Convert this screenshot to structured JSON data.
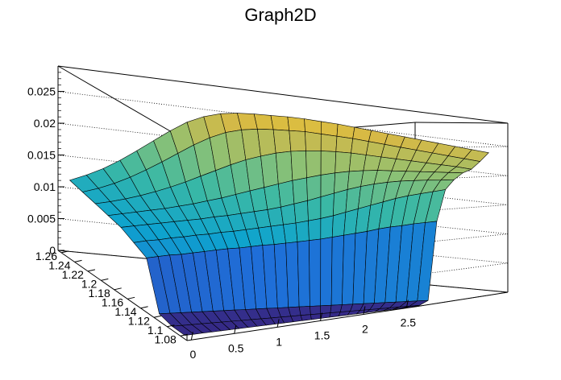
{
  "chart_data": {
    "type": "surface",
    "title": "Graph2D",
    "xlabel": "",
    "ylabel": "",
    "zlabel": "",
    "x_ticks": [
      "0",
      "0.5",
      "1",
      "1.5",
      "2",
      "2.5"
    ],
    "y_ticks": [
      "1.08",
      "1.1",
      "1.12",
      "1.14",
      "1.16",
      "1.18",
      "1.2",
      "1.22",
      "1.24",
      "1.26"
    ],
    "z_ticks": [
      "0",
      "0.005",
      "0.01",
      "0.015",
      "0.02",
      "0.025"
    ],
    "xlim": [
      -0.05,
      2.6
    ],
    "ylim": [
      1.07,
      1.265
    ],
    "zlim": [
      0,
      0.029
    ],
    "grid": true,
    "palette": [
      "#352a87",
      "#1f6ed8",
      "#0ea3ce",
      "#3ab8a5",
      "#8ac176",
      "#d6b946",
      "#f9d71f"
    ],
    "surface_x": [
      0,
      0.1,
      0.2,
      0.3,
      0.4,
      0.5,
      0.6,
      0.7,
      0.8,
      0.9,
      1.0,
      1.1,
      1.2,
      1.3,
      1.4,
      1.5,
      1.6,
      1.7,
      1.8,
      1.9,
      2.0,
      2.1,
      2.2,
      2.3,
      2.4,
      2.5
    ],
    "surface_y": [
      1.08,
      1.1,
      1.12,
      1.14,
      1.16,
      1.18,
      1.2,
      1.22,
      1.24,
      1.26
    ],
    "surface_z": [
      [
        0,
        0,
        0,
        0,
        0,
        0,
        0,
        0,
        0,
        0,
        0,
        0,
        0,
        0,
        0,
        0,
        0,
        0,
        0,
        0,
        0,
        0,
        0,
        0,
        0,
        0
      ],
      [
        0,
        0,
        0,
        0,
        0,
        0,
        0,
        0,
        0,
        0,
        0,
        0,
        0,
        0,
        0,
        0,
        0,
        0,
        0,
        0,
        0,
        0,
        0,
        0,
        0,
        0
      ],
      [
        0.0005,
        0.0005,
        0.0005,
        0.0005,
        0.0005,
        0.0005,
        0.0005,
        0.0005,
        0.0005,
        0.0005,
        0.0005,
        0.0005,
        0.0005,
        0.0005,
        0.0005,
        0.0005,
        0.0005,
        0.0005,
        0.0005,
        0.0005,
        0.0005,
        0.0005,
        0.0005,
        0.0005,
        0.0005,
        0.0005
      ],
      [
        0.0075,
        0.0077,
        0.0079,
        0.008,
        0.0082,
        0.0084,
        0.0086,
        0.0088,
        0.0089,
        0.0091,
        0.0093,
        0.0094,
        0.0096,
        0.0098,
        0.01,
        0.0102,
        0.0105,
        0.0108,
        0.0111,
        0.0114,
        0.0118,
        0.0121,
        0.0123,
        0.0126,
        0.0128,
        0.013
      ],
      [
        0.0085,
        0.0088,
        0.009,
        0.0093,
        0.0095,
        0.0098,
        0.01,
        0.0103,
        0.0105,
        0.0108,
        0.0111,
        0.0114,
        0.0117,
        0.012,
        0.0124,
        0.0128,
        0.0133,
        0.0139,
        0.0145,
        0.0151,
        0.0157,
        0.0163,
        0.0168,
        0.0172,
        0.0176,
        0.018
      ],
      [
        0.0095,
        0.0098,
        0.0101,
        0.0104,
        0.0107,
        0.011,
        0.0113,
        0.0117,
        0.012,
        0.0124,
        0.0128,
        0.0132,
        0.0137,
        0.0143,
        0.0149,
        0.0156,
        0.0163,
        0.017,
        0.0176,
        0.0181,
        0.0185,
        0.0188,
        0.019,
        0.0192,
        0.0193,
        0.0195
      ],
      [
        0.01,
        0.0104,
        0.0108,
        0.0112,
        0.0116,
        0.0121,
        0.0126,
        0.0132,
        0.0138,
        0.0145,
        0.0152,
        0.0159,
        0.0166,
        0.0173,
        0.0179,
        0.0185,
        0.019,
        0.0194,
        0.0197,
        0.0199,
        0.02,
        0.0201,
        0.0202,
        0.0203,
        0.0204,
        0.0205
      ],
      [
        0.0105,
        0.011,
        0.0116,
        0.0123,
        0.0131,
        0.014,
        0.015,
        0.0161,
        0.0172,
        0.0183,
        0.0193,
        0.0201,
        0.0208,
        0.0213,
        0.0216,
        0.0218,
        0.0219,
        0.0219,
        0.0218,
        0.0217,
        0.0216,
        0.0215,
        0.0214,
        0.0213,
        0.0212,
        0.021
      ],
      [
        0.011,
        0.0118,
        0.0128,
        0.014,
        0.0154,
        0.0169,
        0.0185,
        0.0201,
        0.0215,
        0.0226,
        0.0233,
        0.0237,
        0.0239,
        0.024,
        0.0241,
        0.024,
        0.0239,
        0.0238,
        0.0236,
        0.0234,
        0.0232,
        0.023,
        0.0228,
        0.0226,
        0.0224,
        0.0222
      ],
      [
        0.0115,
        0.0126,
        0.0139,
        0.0155,
        0.0173,
        0.0192,
        0.0211,
        0.0228,
        0.024,
        0.0248,
        0.0252,
        0.0254,
        0.0255,
        0.0256,
        0.0256,
        0.0255,
        0.0254,
        0.0252,
        0.025,
        0.0248,
        0.0246,
        0.0244,
        0.0242,
        0.024,
        0.0238,
        0.0236
      ]
    ]
  }
}
